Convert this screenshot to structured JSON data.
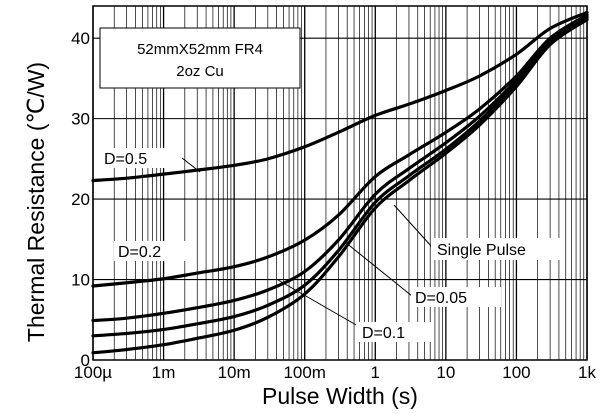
{
  "chart_data": {
    "type": "line",
    "xlabel": "Pulse Width (s)",
    "ylabel": "Thermal Resistance (℃/W)",
    "x_scale": "log",
    "xlim": [
      0.0001,
      1000
    ],
    "ylim": [
      0,
      44
    ],
    "grid": true,
    "x_tick_values": [
      0.0001,
      0.001,
      0.01,
      0.1,
      1,
      10,
      100,
      1000
    ],
    "x_tick_labels": [
      "100µ",
      "1m",
      "10m",
      "100m",
      "1",
      "10",
      "100",
      "1k"
    ],
    "y_ticks": [
      0,
      10,
      20,
      30,
      40
    ],
    "info_box": [
      "52mmX52mm FR4",
      "2oz Cu"
    ],
    "series": [
      {
        "name": "D=0.5",
        "x": [
          0.0001,
          0.0003,
          0.001,
          0.003,
          0.01,
          0.03,
          0.1,
          0.3,
          1,
          3,
          10,
          30,
          100,
          300,
          1000
        ],
        "y": [
          22.3,
          22.6,
          23.1,
          23.6,
          24.2,
          25.0,
          26.5,
          28.3,
          30.4,
          31.8,
          33.5,
          35.3,
          38.0,
          41.2,
          43.2
        ]
      },
      {
        "name": "D=0.2",
        "x": [
          0.0001,
          0.0003,
          0.001,
          0.003,
          0.01,
          0.03,
          0.1,
          0.3,
          1,
          3,
          10,
          30,
          100,
          300,
          1000
        ],
        "y": [
          9.2,
          9.6,
          10.1,
          10.8,
          11.6,
          12.8,
          14.9,
          18.0,
          22.8,
          25.5,
          28.3,
          31.2,
          35.3,
          40.0,
          42.9
        ]
      },
      {
        "name": "D=0.1",
        "x": [
          0.0001,
          0.0003,
          0.001,
          0.003,
          0.01,
          0.03,
          0.1,
          0.3,
          1,
          3,
          10,
          30,
          100,
          300,
          1000
        ],
        "y": [
          4.9,
          5.2,
          5.8,
          6.5,
          7.4,
          8.7,
          11.0,
          14.9,
          20.6,
          23.8,
          27.0,
          30.3,
          34.8,
          39.8,
          42.7
        ]
      },
      {
        "name": "D=0.05",
        "x": [
          0.0001,
          0.0003,
          0.001,
          0.003,
          0.01,
          0.03,
          0.1,
          0.3,
          1,
          3,
          10,
          30,
          100,
          300,
          1000
        ],
        "y": [
          3.0,
          3.3,
          3.8,
          4.5,
          5.4,
          6.8,
          9.3,
          13.6,
          19.6,
          22.9,
          26.2,
          29.7,
          34.4,
          39.5,
          42.5
        ]
      },
      {
        "name": "Single Pulse",
        "x": [
          0.0001,
          0.0003,
          0.001,
          0.003,
          0.01,
          0.03,
          0.1,
          0.3,
          1,
          3,
          10,
          30,
          100,
          300,
          1000
        ],
        "y": [
          0.9,
          1.3,
          1.9,
          2.7,
          3.7,
          5.3,
          8.2,
          12.8,
          18.9,
          22.3,
          25.7,
          29.2,
          34.0,
          39.2,
          42.3
        ]
      }
    ]
  }
}
